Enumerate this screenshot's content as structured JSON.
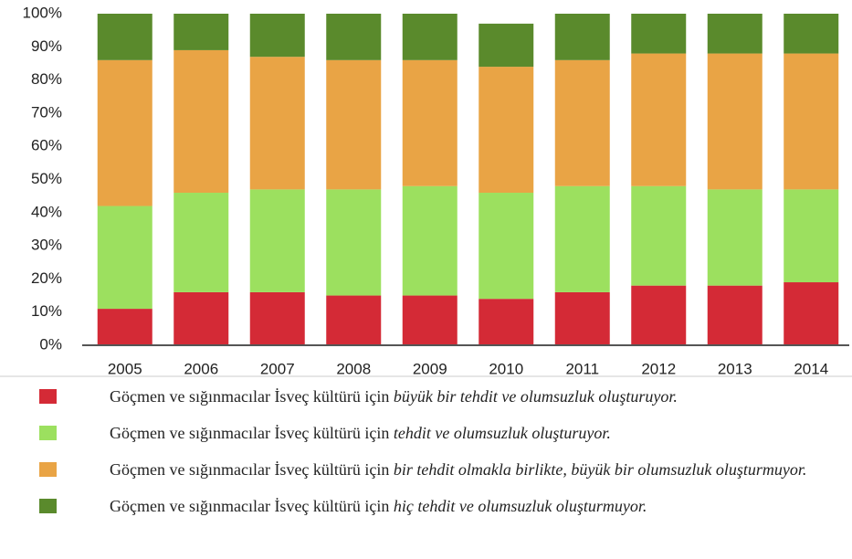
{
  "chart_data": {
    "type": "stacked_bar",
    "categories": [
      "2005",
      "2006",
      "2007",
      "2008",
      "2009",
      "2010",
      "2011",
      "2012",
      "2013",
      "2014"
    ],
    "series": [
      {
        "name": "Göçmen ve sığınmacılar İsveç kültürü için",
        "name_emphasis": "büyük bir tehdit ve olumsuzluk oluşturuyor.",
        "color": "#d42a36",
        "values": [
          11,
          16,
          16,
          15,
          15,
          14,
          16,
          18,
          18,
          19
        ]
      },
      {
        "name": "Göçmen ve sığınmacılar İsveç kültürü için",
        "name_emphasis": "tehdit ve olumsuzluk oluşturuyor.",
        "color": "#9ce05f",
        "values": [
          31,
          30,
          31,
          32,
          33,
          32,
          32,
          30,
          29,
          28
        ]
      },
      {
        "name": "Göçmen ve sığınmacılar İsveç kültürü için",
        "name_emphasis": "bir tehdit olmakla birlikte, büyük bir olumsuzluk oluşturmuyor.",
        "color": "#e9a445",
        "values": [
          44,
          43,
          40,
          39,
          38,
          38,
          38,
          40,
          41,
          41
        ]
      },
      {
        "name": "Göçmen ve sığınmacılar İsveç kültürü için",
        "name_emphasis": "hiç tehdit ve olumsuzluk oluşturmuyor.",
        "color": "#5a8a2c",
        "values": [
          14,
          11,
          13,
          14,
          14,
          13,
          14,
          12,
          12,
          12
        ]
      }
    ],
    "ylim": [
      0,
      100
    ],
    "yticks": [
      {
        "value": 0,
        "label": "0%"
      },
      {
        "value": 10,
        "label": "10%"
      },
      {
        "value": 20,
        "label": "20%"
      },
      {
        "value": 30,
        "label": "30%"
      },
      {
        "value": 40,
        "label": "40%"
      },
      {
        "value": 50,
        "label": "50%"
      },
      {
        "value": 60,
        "label": "60%"
      },
      {
        "value": 70,
        "label": "70%"
      },
      {
        "value": 80,
        "label": "80%"
      },
      {
        "value": 90,
        "label": "90%"
      },
      {
        "value": 100,
        "label": "100%"
      }
    ],
    "grid": false
  }
}
